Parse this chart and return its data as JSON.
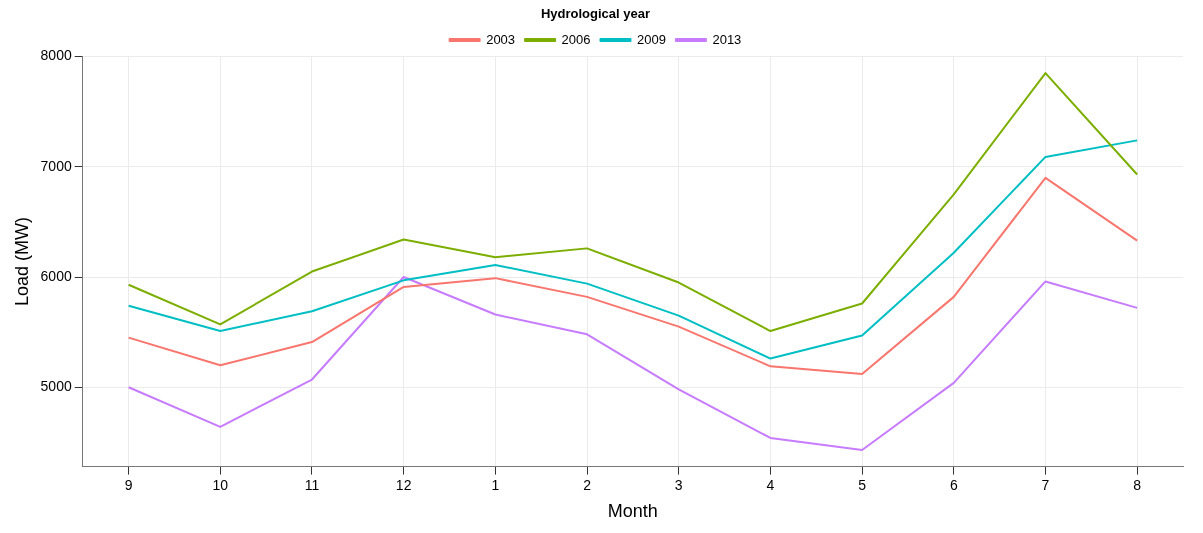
{
  "chart_data": {
    "type": "line",
    "xlabel": "Month",
    "ylabel": "Load (MW)",
    "legend_title": "Hydrological year",
    "legend": "top",
    "categories": [
      "9",
      "10",
      "11",
      "12",
      "1",
      "2",
      "3",
      "4",
      "5",
      "6",
      "7",
      "8"
    ],
    "series": [
      {
        "name": "2003",
        "color": "#f8766d",
        "values": [
          5450,
          5200,
          5410,
          5910,
          5990,
          5820,
          5550,
          5190,
          5120,
          5820,
          6900,
          6330
        ]
      },
      {
        "name": "2006",
        "color": "#7cae00",
        "values": [
          5930,
          5570,
          6050,
          6340,
          6180,
          6260,
          5950,
          5510,
          5760,
          6750,
          7850,
          6930
        ]
      },
      {
        "name": "2009",
        "color": "#00bfc4",
        "values": [
          5740,
          5510,
          5690,
          5970,
          6110,
          5940,
          5650,
          5260,
          5470,
          6220,
          7090,
          7240
        ]
      },
      {
        "name": "2013",
        "color": "#c77cff",
        "values": [
          5000,
          4640,
          5070,
          6000,
          5660,
          5480,
          4980,
          4540,
          4430,
          5040,
          5960,
          5720
        ]
      }
    ],
    "ylim": [
      4280,
      8000
    ],
    "yticks": [
      5000,
      6000,
      7000,
      8000
    ],
    "grid": true,
    "marker": "none",
    "line_style": "solid"
  }
}
